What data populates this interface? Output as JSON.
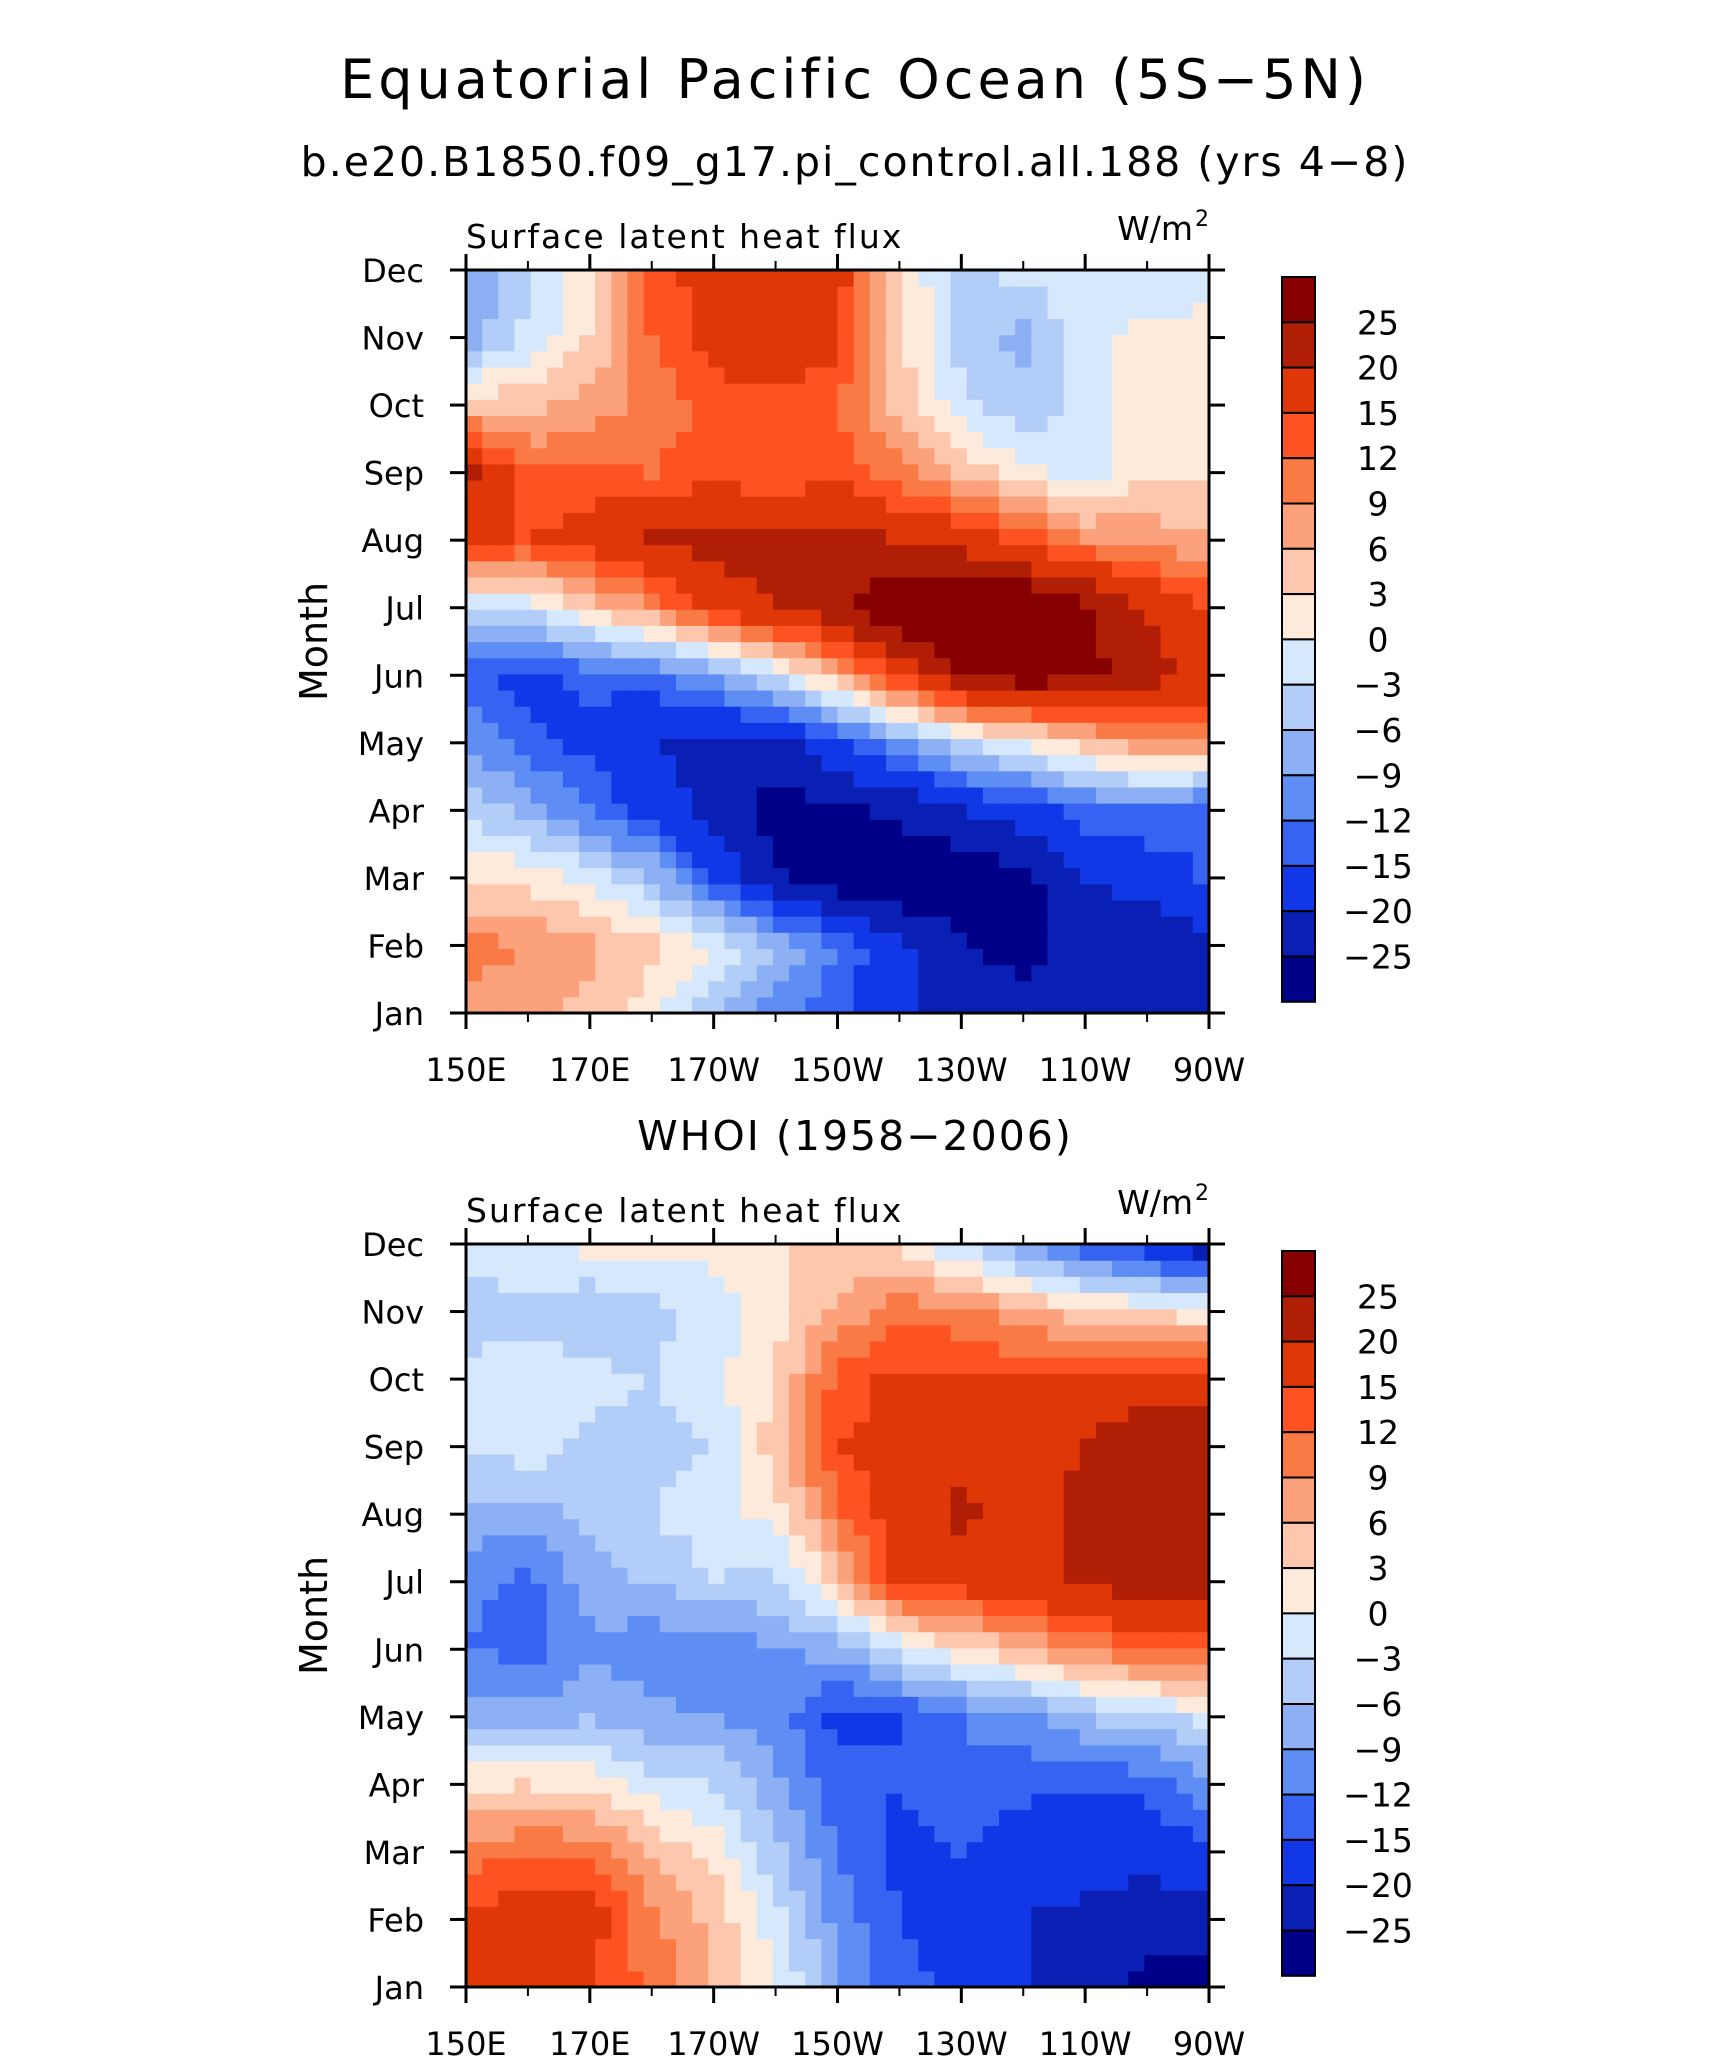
{
  "title": "Equatorial Pacific Ocean (5S−5N)",
  "subtitle": "b.e20.B1850.f09_g17.pi_control.all.188 (yrs 4−8)",
  "second_title": "WHOI (1958−2006)",
  "chart_data": [
    {
      "type": "heatmap",
      "source": "b.e20.B1850.f09_g17.pi_control.all.188 (yrs 4−8)",
      "variable_label": "Surface latent heat flux",
      "units_label": "W/m",
      "units_power": "2",
      "ylabel": "Month",
      "x_ticks": [
        "150E",
        "170E",
        "170W",
        "150W",
        "130W",
        "110W",
        "90W"
      ],
      "x_range_deg_east": [
        150,
        270
      ],
      "y_ticks": [
        "Jan",
        "Feb",
        "Mar",
        "Apr",
        "May",
        "Jun",
        "Jul",
        "Aug",
        "Sep",
        "Oct",
        "Nov",
        "Dec"
      ],
      "x_lon": [
        150,
        160,
        170,
        180,
        190,
        200,
        210,
        220,
        230,
        240,
        250,
        260,
        270
      ],
      "values": [
        [
          8,
          7,
          5,
          1,
          -5,
          -11,
          -14,
          -19,
          -21,
          -22,
          -21,
          -22,
          -20
        ],
        [
          10,
          9,
          7,
          4,
          0,
          -6,
          -12,
          -19,
          -24,
          -28,
          -22,
          -24,
          -22
        ],
        [
          3,
          2,
          -1,
          -6,
          -15,
          -24,
          -28,
          -30,
          -29,
          -27,
          -20,
          -18,
          -14
        ],
        [
          -4,
          -7,
          -12,
          -17,
          -22,
          -27,
          -26,
          -24,
          -20,
          -17,
          -13,
          -12,
          -15
        ],
        [
          -9,
          -14,
          -16,
          -20,
          -21,
          -22,
          -16,
          -10,
          -4,
          0,
          4,
          9,
          10
        ],
        [
          -14,
          -17,
          -14,
          -13,
          -9,
          -2,
          6,
          16,
          25,
          28,
          27,
          22,
          18
        ],
        [
          -3,
          -2,
          4,
          9,
          17,
          20,
          24,
          30,
          32,
          31,
          26,
          20,
          15
        ],
        [
          16,
          15,
          17,
          21,
          22,
          22,
          22,
          20,
          18,
          14,
          9,
          8,
          6
        ],
        [
          22,
          12,
          13,
          12,
          14,
          12,
          14,
          10,
          5,
          1,
          -2,
          3,
          2
        ],
        [
          5,
          5,
          7,
          10,
          13,
          14,
          12,
          5,
          -2,
          -5,
          -2,
          2,
          3
        ],
        [
          -8,
          -2,
          3,
          12,
          17,
          18,
          16,
          4,
          -5,
          -7,
          -1,
          1,
          2
        ],
        [
          -10,
          -4,
          3,
          12,
          18,
          19,
          17,
          3,
          -4,
          -2,
          -1,
          -3,
          -2
        ]
      ]
    },
    {
      "type": "heatmap",
      "source": "WHOI (1958−2006)",
      "variable_label": "Surface latent heat flux",
      "units_label": "W/m",
      "units_power": "2",
      "ylabel": "Month",
      "x_ticks": [
        "150E",
        "170E",
        "170W",
        "150W",
        "130W",
        "110W",
        "90W"
      ],
      "x_range_deg_east": [
        150,
        270
      ],
      "y_ticks": [
        "Jan",
        "Feb",
        "Mar",
        "Apr",
        "May",
        "Jun",
        "Jul",
        "Aug",
        "Sep",
        "Oct",
        "Nov",
        "Dec"
      ],
      "x_lon": [
        150,
        160,
        170,
        180,
        190,
        200,
        210,
        220,
        230,
        240,
        250,
        260,
        270
      ],
      "values": [
        [
          15,
          17,
          15,
          11,
          6,
          1,
          -8,
          -14,
          -16,
          -20,
          -24,
          -26,
          -28
        ],
        [
          16,
          18,
          17,
          10,
          5,
          -2,
          -10,
          -15,
          -17,
          -20,
          -22,
          -24,
          -22
        ],
        [
          10,
          12,
          11,
          6,
          2,
          -5,
          -12,
          -16,
          -15,
          -18,
          -16,
          -18,
          -16
        ],
        [
          2,
          3,
          2,
          -2,
          -3,
          -8,
          -14,
          -15,
          -12,
          -14,
          -15,
          -14,
          -10
        ],
        [
          -7,
          -8,
          -6,
          -8,
          -9,
          -11,
          -16,
          -15,
          -12,
          -10,
          -6,
          -4,
          -2
        ],
        [
          -12,
          -13,
          -10,
          -11,
          -12,
          -9,
          -8,
          -2,
          2,
          6,
          9,
          12,
          13
        ],
        [
          -11,
          -13,
          -7,
          -6,
          -3,
          -4,
          4,
          16,
          17,
          18,
          21,
          23,
          23
        ],
        [
          -7,
          -8,
          -5,
          -3,
          -1,
          1,
          11,
          18,
          21,
          18,
          22,
          25,
          24
        ],
        [
          -3,
          -1,
          -4,
          -4,
          -3,
          5,
          15,
          17,
          19,
          16,
          20,
          24,
          24
        ],
        [
          -2,
          -1,
          -2,
          -3,
          -1,
          3,
          13,
          16,
          16,
          15,
          16,
          18,
          17
        ],
        [
          -5,
          -4,
          -6,
          -4,
          -2,
          2,
          7,
          11,
          10,
          7,
          4,
          3,
          1
        ],
        [
          -2,
          0,
          1,
          2,
          1,
          3,
          3,
          2,
          -3,
          -9,
          -14,
          -18,
          -24
        ]
      ]
    }
  ],
  "colorbar": {
    "labels": [
      "25",
      "20",
      "15",
      "12",
      "9",
      "6",
      "3",
      "0",
      "−3",
      "−6",
      "−9",
      "−12",
      "−15",
      "−20",
      "−25"
    ],
    "levels": [
      -25,
      -20,
      -15,
      -12,
      -9,
      -6,
      -3,
      0,
      3,
      6,
      9,
      12,
      15,
      20,
      25
    ],
    "colors_top_to_bottom": [
      "#870000",
      "#b11e06",
      "#df3708",
      "#ff5222",
      "#fa7a46",
      "#fba17c",
      "#fdc7ae",
      "#feeadb",
      "#d6e8fc",
      "#b1cdf8",
      "#8db0f5",
      "#5e8ef3",
      "#3663f1",
      "#1137e6",
      "#0a20b4",
      "#000088"
    ]
  }
}
